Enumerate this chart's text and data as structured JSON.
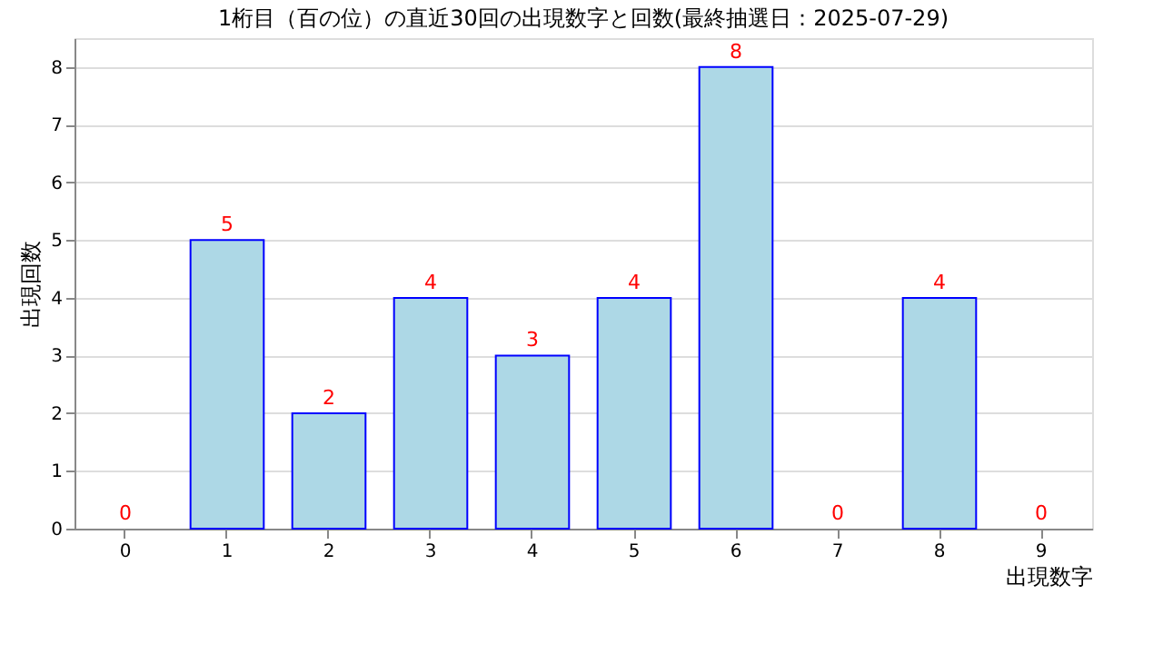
{
  "chart_data": {
    "type": "bar",
    "title": "1桁目（百の位）の直近30回の出現数字と回数(最終抽選日：2025-07-29)",
    "xlabel": "出現数字",
    "ylabel": "出現回数",
    "categories": [
      "0",
      "1",
      "2",
      "3",
      "4",
      "5",
      "6",
      "7",
      "8",
      "9"
    ],
    "series": [
      {
        "color": "#add8e6",
        "values": [
          0,
          5,
          2,
          4,
          3,
          4,
          8,
          0,
          4,
          0
        ]
      }
    ],
    "ylim": [
      0,
      8.5
    ],
    "yticks": [
      0,
      1,
      2,
      3,
      4,
      5,
      6,
      7,
      8
    ],
    "grid": "y",
    "data_labels": true
  }
}
